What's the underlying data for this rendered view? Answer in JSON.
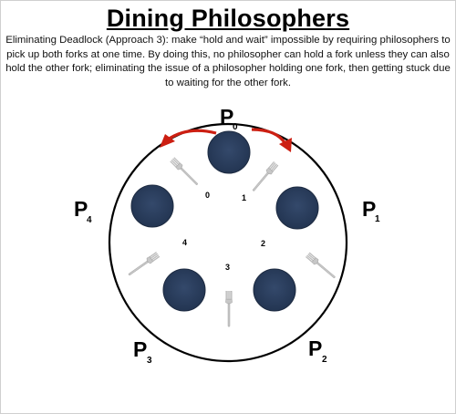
{
  "title": "Dining Philosophers",
  "description": "Eliminating Deadlock (Approach 3): make “hold and wait” impossible by requiring philosophers to pick up both forks at one time. By doing this, no philosopher can hold a fork unless they can also hold the other fork; eliminating the issue of a philosopher holding one fork, then getting stuck due to waiting for the other fork.",
  "philosophers": [
    {
      "letter": "P",
      "index": "0"
    },
    {
      "letter": "P",
      "index": "1"
    },
    {
      "letter": "P",
      "index": "2"
    },
    {
      "letter": "P",
      "index": "3"
    },
    {
      "letter": "P",
      "index": "4"
    }
  ],
  "fork_numbers": [
    "0",
    "1",
    "2",
    "3",
    "4"
  ],
  "colors": {
    "plate": "#2b3f5f",
    "plate_rim": "#1c2a40",
    "arrow": "#cc1f12",
    "table_stroke": "#000000",
    "fork": "#b9b9b9"
  },
  "icons": {
    "plate": "plate-icon",
    "fork": "fork-icon",
    "arrow": "curved-arrow-icon"
  }
}
